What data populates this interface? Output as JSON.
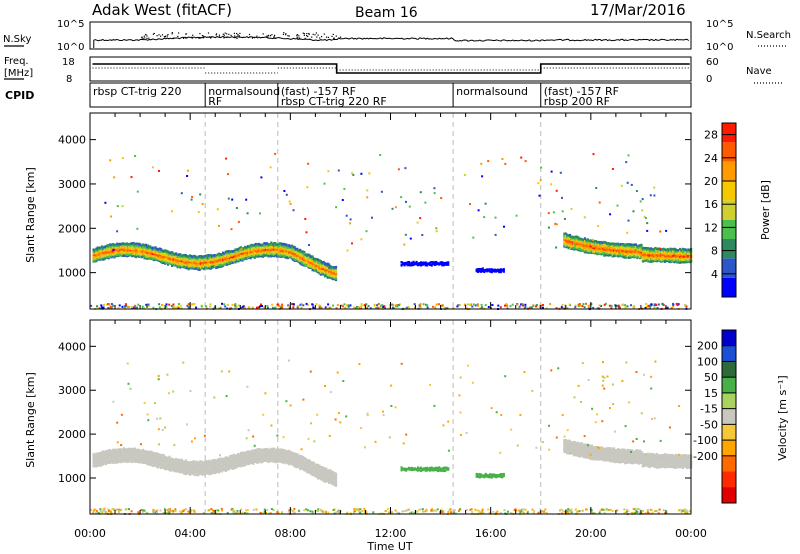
{
  "header": {
    "station": "Adak West (fitACF)",
    "beam": "Beam 16",
    "date": "17/Mar/2016"
  },
  "top_panels": {
    "nsky_label": "N.Sky",
    "nsky_ticks": [
      "10^5",
      "10^0"
    ],
    "nsearch_label": "N.Search",
    "nsearch_ticks": [
      "10^5",
      "10^0"
    ],
    "freq_label": "Freq.",
    "freq_unit": "[MHz]",
    "freq_ticks": [
      "18",
      "8"
    ],
    "nave_label": "Nave",
    "nave_ticks": [
      "60",
      "0"
    ],
    "cpid_label": "CPID"
  },
  "cpid_segments": [
    {
      "start_h": 0.0,
      "end_h": 4.6,
      "name": "rbsp CT-trig 220",
      "sub": ""
    },
    {
      "start_h": 4.6,
      "end_h": 7.5,
      "name": "normalsound",
      "sub": "RF"
    },
    {
      "start_h": 7.5,
      "end_h": 14.5,
      "name": "(fast) -157 RF",
      "sub": "rbsp CT-trig 220 RF"
    },
    {
      "start_h": 14.5,
      "end_h": 18.0,
      "name": "normalsound",
      "sub": ""
    },
    {
      "start_h": 18.0,
      "end_h": 24.0,
      "name": "(fast) -157 RF",
      "sub": "rbsp 200 RF"
    }
  ],
  "colors": {
    "power": [
      "#0000ff",
      "#2d56c8",
      "#2c8a5e",
      "#4cc04c",
      "#cfd030",
      "#f5c800",
      "#ff9b00",
      "#ff5a00",
      "#ff1a00"
    ],
    "velocity": [
      "#0000cc",
      "#1a4fd6",
      "#2d6a3a",
      "#49b048",
      "#a9d35e",
      "#c8c8c0",
      "#f5c83a",
      "#ffa500",
      "#ff6a00",
      "#ff2a00",
      "#e00000"
    ]
  },
  "chart_data": [
    {
      "type": "heatmap",
      "title": "Power",
      "xlabel": "Time UT",
      "ylabel": "Slant Range [km]",
      "x_ticks": [
        "00:00",
        "04:00",
        "08:00",
        "12:00",
        "16:00",
        "20:00",
        "00:00"
      ],
      "xlim_hours": [
        0,
        24
      ],
      "ylim": [
        180,
        4600
      ],
      "y_ticks": [
        1000,
        2000,
        3000,
        4000
      ],
      "colorbar_label": "Power [dB]",
      "colorbar_ticks": [
        4,
        8,
        12,
        16,
        20,
        24,
        28
      ],
      "colorbar_range": [
        0,
        30
      ],
      "bands": [
        {
          "t0": 0.1,
          "t1": 9.8,
          "range_km": 1400,
          "width_km": 300,
          "value_db": 25
        },
        {
          "t0": 18.9,
          "t1": 24.0,
          "range_km": 1450,
          "width_km": 300,
          "value_db": 26
        },
        {
          "t0": 12.4,
          "t1": 14.3,
          "range_km": 1230,
          "width_km": 70,
          "value_db": 6
        },
        {
          "t0": 15.4,
          "t1": 16.5,
          "range_km": 1080,
          "width_km": 70,
          "value_db": 6
        }
      ]
    },
    {
      "type": "heatmap",
      "title": "Velocity",
      "xlabel": "Time UT",
      "ylabel": "Slant Range [km]",
      "x_ticks": [
        "00:00",
        "04:00",
        "08:00",
        "12:00",
        "16:00",
        "20:00",
        "00:00"
      ],
      "xlim_hours": [
        0,
        24
      ],
      "ylim": [
        180,
        4600
      ],
      "y_ticks": [
        1000,
        2000,
        3000,
        4000
      ],
      "colorbar_label": "Velocity [m s⁻¹]",
      "colorbar_ticks": [
        200,
        100,
        50,
        15,
        -15,
        -50,
        -100,
        -200
      ],
      "bands": [
        {
          "t0": 0.1,
          "t1": 9.8,
          "range_km": 1400,
          "width_km": 300,
          "value_ms": 0
        },
        {
          "t0": 18.9,
          "t1": 24.0,
          "range_km": 1450,
          "width_km": 300,
          "value_ms": 0
        },
        {
          "t0": 12.4,
          "t1": 14.3,
          "range_km": 1230,
          "width_km": 70,
          "value_ms": 60
        },
        {
          "t0": 15.4,
          "t1": 16.5,
          "range_km": 1080,
          "width_km": 70,
          "value_ms": 60
        }
      ]
    }
  ]
}
